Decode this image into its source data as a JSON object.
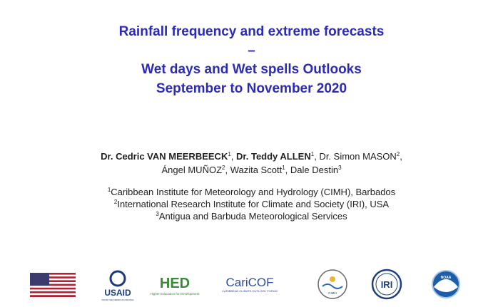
{
  "title": {
    "lines": [
      "Rainfall frequency and extreme forecasts",
      "–",
      "Wet days and Wet spells Outlooks",
      "September to November 2020"
    ]
  },
  "authors": {
    "lines": [
      [
        {
          "text": "Dr. Cedric VAN MEERBEECK",
          "sup": "1",
          "bold": true
        },
        {
          "text": ", "
        },
        {
          "text": "Dr. Teddy ALLEN",
          "sup": "1",
          "bold": true
        },
        {
          "text": ", Dr. Simon MASON",
          "sup": "2"
        },
        {
          "text": ","
        }
      ],
      [
        {
          "text": "Ángel MUÑOZ",
          "sup": "2"
        },
        {
          "text": ", Wazita Scott",
          "sup": "1"
        },
        {
          "text": ", Dale Destin",
          "sup": "3"
        }
      ]
    ]
  },
  "affiliations": [
    {
      "sup": "1",
      "text": "Caribbean Institute for Meteorology and Hydrology (CIMH), Barbados"
    },
    {
      "sup": "2",
      "text": "International Research Institute for Climate and Society (IRI), USA"
    },
    {
      "sup": "3",
      "text": "Antigua and Barbuda Meteorological Services"
    }
  ],
  "logos": {
    "usaid": "USAID",
    "usaid_tagline": "FROM THE AMERICAN PEOPLE",
    "hed": "HED",
    "hed_tagline": "Higher Education for Development",
    "caricof": "CariCOF",
    "caricof_tagline": "CARIBBEAN CLIMATE OUTLOOK FORUM",
    "cimh": "CIMH",
    "iri": "IRI",
    "noaa": "NOAA"
  }
}
